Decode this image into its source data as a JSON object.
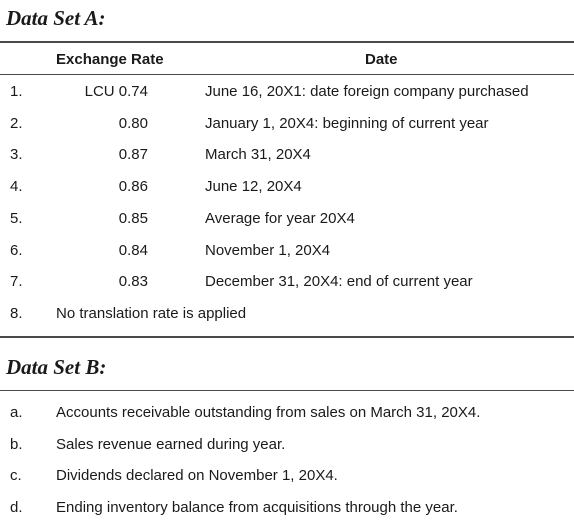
{
  "dataSetA": {
    "title": "Data Set A:",
    "headers": [
      "Exchange Rate",
      "Date"
    ],
    "rows": [
      [
        "1.",
        "LCU 0.74",
        "June 16, 20X1: date foreign company purchased"
      ],
      [
        "2.",
        "0.80",
        "January 1, 20X4: beginning of current year"
      ],
      [
        "3.",
        "0.87",
        "March 31, 20X4"
      ],
      [
        "4.",
        "0.86",
        "June 12, 20X4"
      ],
      [
        "5.",
        "0.85",
        "Average for year 20X4"
      ],
      [
        "6.",
        "0.84",
        "November 1, 20X4"
      ],
      [
        "7.",
        "0.83",
        "December 31, 20X4: end of current year"
      ]
    ],
    "lastRow": [
      "8.",
      "No translation rate is applied"
    ]
  },
  "dataSetB": {
    "title": "Data Set B:",
    "items": [
      [
        "a.",
        "Accounts receivable outstanding from sales on March 31, 20X4."
      ],
      [
        "b.",
        "Sales revenue earned during year."
      ],
      [
        "c.",
        "Dividends declared on November 1, 20X4."
      ],
      [
        "d.",
        "Ending inventory balance from acquisitions through the year."
      ]
    ]
  }
}
